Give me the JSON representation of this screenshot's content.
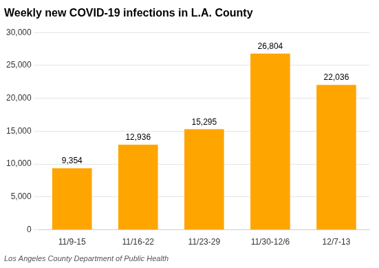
{
  "chart_data": {
    "type": "bar",
    "title": "Weekly new COVID-19 infections in L.A. County",
    "annotations": [
      "Los Angeles County Department of Public Health"
    ],
    "categories": [
      "11/9-15",
      "11/16-22",
      "11/23-29",
      "11/30-12/6",
      "12/7-13"
    ],
    "values": [
      9354,
      12936,
      15295,
      26804,
      22036
    ],
    "value_labels": [
      "9,354",
      "12,936",
      "15,295",
      "26,804",
      "22,036"
    ],
    "data_labels": true,
    "color": "#FFA500",
    "ylim": [
      0,
      30000
    ],
    "yticks": [
      0,
      {
        "value": 5000,
        "label": "5,000"
      },
      {
        "value": 10000,
        "label": "10,000"
      },
      {
        "value": 15000,
        "label": "15,000"
      },
      {
        "value": 20000,
        "label": "20,000"
      },
      {
        "value": 25000,
        "label": "25,000"
      },
      {
        "value": 30000,
        "label": "30,000"
      }
    ],
    "grid": true
  }
}
